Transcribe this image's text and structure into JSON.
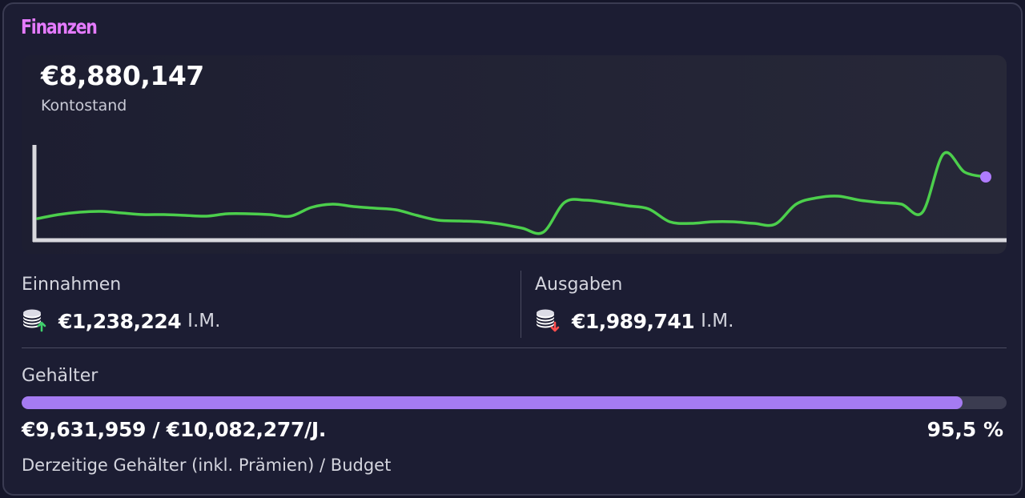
{
  "card": {
    "title": "Finanzen"
  },
  "balance": {
    "value": "€8,880,147",
    "label": "Kontostand"
  },
  "chart_data": {
    "type": "line",
    "values": [
      268,
      263,
      260,
      259,
      261,
      263,
      263,
      264,
      265,
      262,
      262,
      263,
      265,
      254,
      250,
      253,
      255,
      257,
      264,
      270,
      271,
      272,
      275,
      280,
      285,
      248,
      245,
      248,
      252,
      256,
      272,
      274,
      272,
      272,
      274,
      275,
      250,
      242,
      240,
      245,
      248,
      250,
      260,
      187,
      210,
      216
    ],
    "line_color": "#4ccf4c",
    "marker_color": "#b07cff",
    "grid": false,
    "legend": "none"
  },
  "income": {
    "label": "Einnahmen",
    "amount": "€1,238,224",
    "unit": "I.M.",
    "icon": "coins-up-icon",
    "arrow_color": "#3fd16b"
  },
  "expenses": {
    "label": "Ausgaben",
    "amount": "€1,989,741",
    "unit": "I.M.",
    "icon": "coins-down-icon",
    "arrow_color": "#ff4d4d"
  },
  "salaries": {
    "label": "Gehälter",
    "amount": "€9,631,959 / €10,082,277/J.",
    "percent_text": "95,5 %",
    "progress": 0.955,
    "description": "Derzeitige Gehälter (inkl. Prämien) / Budget",
    "bar_color": "#a57bf2"
  }
}
